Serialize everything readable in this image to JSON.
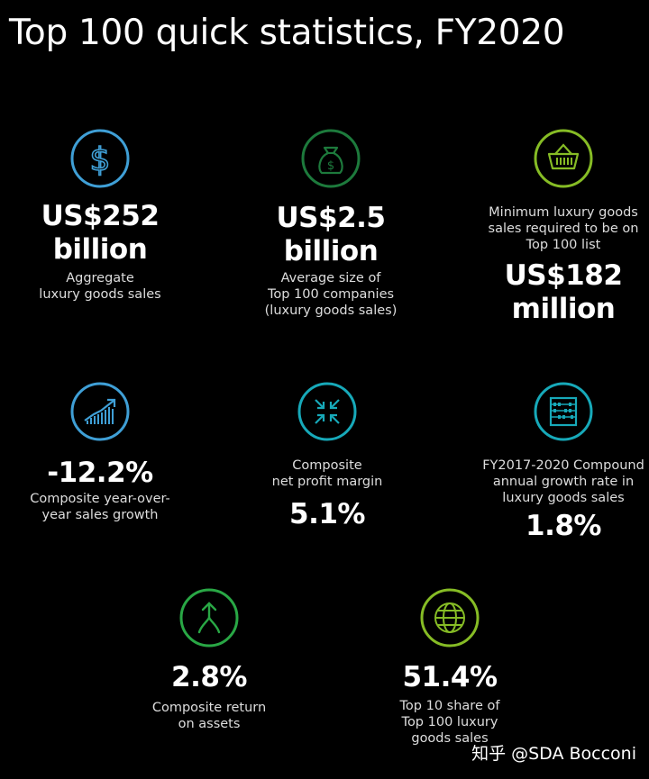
{
  "title": "Top 100 quick statistics, FY2020",
  "colors": {
    "blue": "#3f9fd6",
    "green": "#29a745",
    "light_green": "#86bc25",
    "dark_green": "#1d7a3c",
    "teal": "#17a9b9"
  },
  "stats": [
    {
      "icon": "dollar-icon",
      "value_line1": "US$252",
      "value_line2": "billion",
      "label_line1": "Aggregate",
      "label_line2": "luxury goods sales"
    },
    {
      "icon": "money-bag-icon",
      "value_line1": "US$2.5",
      "value_line2": "billion",
      "label_line1": "Average size of",
      "label_line2": "Top 100 companies",
      "label_line3": "(luxury goods sales)"
    },
    {
      "icon": "shopping-basket-icon",
      "label_line1": "Minimum luxury goods",
      "label_line2": "sales required to be on",
      "label_line3": "Top 100 list",
      "value_line1": "US$182",
      "value_line2": "million"
    },
    {
      "icon": "growth-chart-icon",
      "value_line1": "-12.2%",
      "label_line1": "Composite year-over-",
      "label_line2": "year sales growth"
    },
    {
      "icon": "compress-arrows-icon",
      "label_line1": "Composite",
      "label_line2": "net profit margin",
      "value_line1": "5.1%"
    },
    {
      "icon": "abacus-icon",
      "label_line1": "FY2017-2020 Compound",
      "label_line2": "annual growth rate in",
      "label_line3": "luxury goods sales",
      "value_line1": "1.8%"
    },
    {
      "icon": "merge-arrows-icon",
      "value_line1": "2.8%",
      "label_line1": "Composite return",
      "label_line2": "on assets"
    },
    {
      "icon": "globe-icon",
      "value_line1": "51.4%",
      "label_line1": "Top 10 share of",
      "label_line2": "Top 100 luxury",
      "label_line3": "goods sales"
    }
  ],
  "watermark": "知乎 @SDA Bocconi"
}
